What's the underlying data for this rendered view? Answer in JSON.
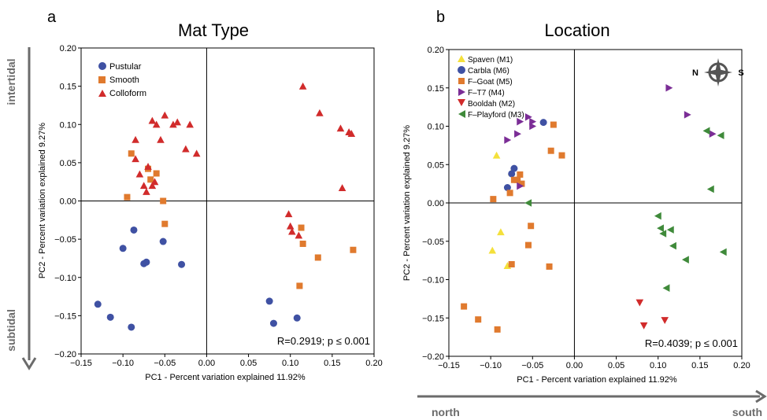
{
  "colors": {
    "blue": "#3f51a3",
    "orange": "#e07a2e",
    "red": "#d12b2b",
    "purple": "#7b2d96",
    "green": "#3f8a3a",
    "yellow": "#f4e03b",
    "axis": "#000000",
    "arrow": "#6b6b6b"
  },
  "side_labels": {
    "intertidal": "intertidal",
    "subtidal": "subtidal",
    "north": "north",
    "south": "south"
  },
  "compass": {
    "n": "N",
    "s": "S"
  },
  "chart_data": [
    {
      "panel_label": "a",
      "type": "scatter",
      "title": "Mat Type",
      "xlabel": "PC1 - Percent variation explained 11.92%",
      "ylabel": "PC2 - Percent variation explained 9.27%",
      "xlim": [
        -0.15,
        0.2
      ],
      "ylim": [
        -0.2,
        0.2
      ],
      "xticks": [
        -0.15,
        -0.1,
        -0.05,
        0.0,
        0.05,
        0.1,
        0.15,
        0.2
      ],
      "xtick_labels": [
        "−0.15",
        "−0.10",
        "−0.05",
        "0.00",
        "0.05",
        "0.10",
        "0.15",
        "0.20"
      ],
      "yticks": [
        -0.2,
        -0.15,
        -0.1,
        -0.05,
        0.0,
        0.05,
        0.1,
        0.15,
        0.2
      ],
      "ytick_labels": [
        "−0.20",
        "−0.15",
        "−0.10",
        "−0.05",
        "0.00",
        "0.05",
        "0.10",
        "0.15",
        "0.20"
      ],
      "legend_position": "top-left",
      "annotation": "R=0.2919; p ≤ 0.001",
      "series": [
        {
          "name": "Pustular",
          "marker": "circle",
          "color": "#3f51a3",
          "points": [
            [
              -0.13,
              -0.135
            ],
            [
              -0.115,
              -0.152
            ],
            [
              -0.09,
              -0.165
            ],
            [
              -0.1,
              -0.062
            ],
            [
              -0.087,
              -0.038
            ],
            [
              -0.075,
              -0.082
            ],
            [
              -0.072,
              -0.08
            ],
            [
              -0.052,
              -0.053
            ],
            [
              -0.03,
              -0.083
            ],
            [
              0.075,
              -0.131
            ],
            [
              0.08,
              -0.16
            ],
            [
              0.108,
              -0.153
            ]
          ]
        },
        {
          "name": "Smooth",
          "marker": "square",
          "color": "#e07a2e",
          "points": [
            [
              -0.09,
              0.062
            ],
            [
              -0.095,
              0.005
            ],
            [
              -0.07,
              0.042
            ],
            [
              -0.067,
              0.028
            ],
            [
              -0.06,
              0.036
            ],
            [
              -0.052,
              0.0
            ],
            [
              -0.05,
              -0.03
            ],
            [
              0.113,
              -0.035
            ],
            [
              0.115,
              -0.056
            ],
            [
              0.133,
              -0.074
            ],
            [
              0.175,
              -0.064
            ],
            [
              0.111,
              -0.111
            ]
          ]
        },
        {
          "name": "Colloform",
          "marker": "triangle",
          "color": "#d12b2b",
          "points": [
            [
              -0.085,
              0.08
            ],
            [
              -0.08,
              0.035
            ],
            [
              -0.075,
              0.02
            ],
            [
              -0.072,
              0.012
            ],
            [
              -0.07,
              0.045
            ],
            [
              -0.065,
              0.105
            ],
            [
              -0.065,
              0.02
            ],
            [
              -0.06,
              0.1
            ],
            [
              -0.055,
              0.08
            ],
            [
              -0.05,
              0.112
            ],
            [
              -0.04,
              0.1
            ],
            [
              -0.035,
              0.103
            ],
            [
              -0.02,
              0.1
            ],
            [
              -0.025,
              0.068
            ],
            [
              -0.012,
              0.062
            ],
            [
              -0.085,
              0.055
            ],
            [
              -0.062,
              0.025
            ],
            [
              0.115,
              0.15
            ],
            [
              0.135,
              0.115
            ],
            [
              0.16,
              0.095
            ],
            [
              0.17,
              0.09
            ],
            [
              0.173,
              0.088
            ],
            [
              0.162,
              0.017
            ],
            [
              0.098,
              -0.017
            ],
            [
              0.1,
              -0.033
            ],
            [
              0.102,
              -0.04
            ],
            [
              0.11,
              -0.045
            ]
          ]
        }
      ]
    },
    {
      "panel_label": "b",
      "type": "scatter",
      "title": "Location",
      "xlabel": "PC1 - Percent variation explained 11.92%",
      "ylabel": "PC2 - Percent variation explained 9.27%",
      "xlim": [
        -0.15,
        0.2
      ],
      "ylim": [
        -0.2,
        0.2
      ],
      "xticks": [
        -0.15,
        -0.1,
        -0.05,
        0.0,
        0.05,
        0.1,
        0.15,
        0.2
      ],
      "xtick_labels": [
        "−0.15",
        "−0.10",
        "−0.05",
        "0.00",
        "0.05",
        "0.10",
        "0.15",
        "0.20"
      ],
      "yticks": [
        -0.2,
        -0.15,
        -0.1,
        -0.05,
        0.0,
        0.05,
        0.1,
        0.15,
        0.2
      ],
      "ytick_labels": [
        "−0.20",
        "−0.15",
        "−0.10",
        "−0.05",
        "0.00",
        "0.05",
        "0.10",
        "0.15",
        "0.20"
      ],
      "legend_position": "top-left",
      "annotation": "R=0.4039; p ≤ 0.001",
      "series": [
        {
          "name": "Spaven (M1)",
          "marker": "triangle",
          "color": "#f4e03b",
          "points": [
            [
              -0.093,
              0.062
            ],
            [
              -0.088,
              -0.038
            ],
            [
              -0.098,
              -0.062
            ],
            [
              -0.08,
              -0.082
            ],
            [
              -0.075,
              0.04
            ]
          ]
        },
        {
          "name": "Carbla (M6)",
          "marker": "circle",
          "color": "#3f51a3",
          "points": [
            [
              -0.08,
              0.02
            ],
            [
              -0.075,
              0.038
            ],
            [
              -0.072,
              0.045
            ],
            [
              -0.037,
              0.105
            ]
          ]
        },
        {
          "name": "F–Goat (M5)",
          "marker": "square",
          "color": "#e07a2e",
          "points": [
            [
              -0.097,
              0.005
            ],
            [
              -0.077,
              0.013
            ],
            [
              -0.072,
              0.03
            ],
            [
              -0.068,
              0.03
            ],
            [
              -0.065,
              0.037
            ],
            [
              -0.063,
              0.025
            ],
            [
              -0.052,
              -0.03
            ],
            [
              -0.055,
              -0.055
            ],
            [
              -0.075,
              -0.08
            ],
            [
              -0.03,
              -0.083
            ],
            [
              -0.132,
              -0.135
            ],
            [
              -0.115,
              -0.152
            ],
            [
              -0.092,
              -0.165
            ],
            [
              -0.025,
              0.102
            ],
            [
              -0.028,
              0.068
            ],
            [
              -0.015,
              0.062
            ]
          ]
        },
        {
          "name": "F–T7 (M4)",
          "marker": "triangle-right",
          "color": "#7b2d96",
          "points": [
            [
              -0.08,
              0.082
            ],
            [
              -0.068,
              0.09
            ],
            [
              -0.065,
              0.106
            ],
            [
              -0.055,
              0.112
            ],
            [
              -0.05,
              0.1
            ],
            [
              -0.05,
              0.106
            ],
            [
              -0.065,
              0.022
            ],
            [
              0.113,
              0.15
            ],
            [
              0.135,
              0.115
            ],
            [
              0.165,
              0.09
            ]
          ]
        },
        {
          "name": "Booldah (M2)",
          "marker": "triangle-down",
          "color": "#d12b2b",
          "points": [
            [
              0.078,
              -0.13
            ],
            [
              0.083,
              -0.16
            ],
            [
              0.108,
              -0.153
            ]
          ]
        },
        {
          "name": "F–Playford (M3)",
          "marker": "triangle-left",
          "color": "#3f8a3a",
          "points": [
            [
              -0.055,
              0.0
            ],
            [
              0.158,
              0.094
            ],
            [
              0.175,
              0.088
            ],
            [
              0.163,
              0.018
            ],
            [
              0.1,
              -0.017
            ],
            [
              0.103,
              -0.033
            ],
            [
              0.106,
              -0.04
            ],
            [
              0.115,
              -0.035
            ],
            [
              0.118,
              -0.056
            ],
            [
              0.133,
              -0.074
            ],
            [
              0.178,
              -0.064
            ],
            [
              0.11,
              -0.111
            ]
          ]
        }
      ]
    }
  ]
}
